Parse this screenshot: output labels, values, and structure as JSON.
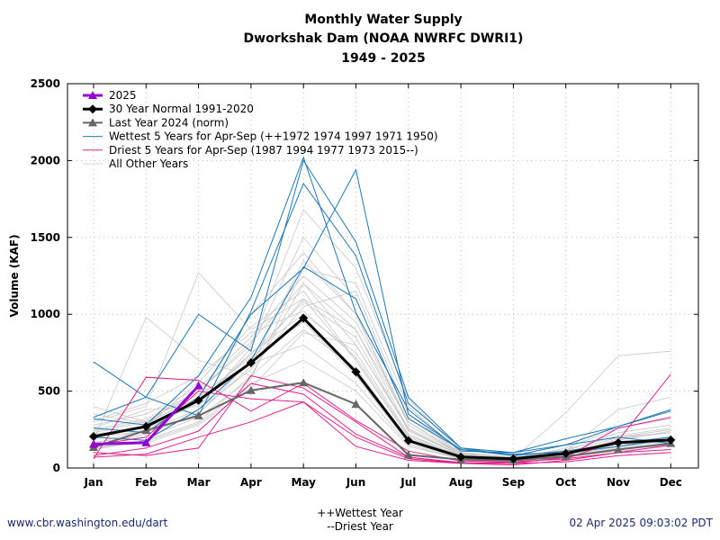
{
  "titles": {
    "line1": "Monthly Water Supply",
    "line2": "Dworkshak Dam (NOAA NWRFC DWRI1)",
    "line3": "1949 - 2025"
  },
  "footer": {
    "left": "www.cbr.washington.edu/dart",
    "right": "02 Apr 2025 09:03:02 PDT",
    "wettest_note": "++Wettest Year",
    "driest_note": "--Driest Year"
  },
  "colors": {
    "y2025": "#9400d3",
    "normal": "#000000",
    "lastyear": "#666666",
    "wettest": "#1f77b4",
    "driest": "#e0218a",
    "other": "#c8c8c8"
  },
  "chart_data": {
    "type": "line",
    "ylabel": "Volume (KAF)",
    "xlabel": "",
    "categories": [
      "Jan",
      "Feb",
      "Mar",
      "Apr",
      "May",
      "Jun",
      "Jul",
      "Aug",
      "Sep",
      "Oct",
      "Nov",
      "Dec"
    ],
    "ylim": [
      0,
      2500
    ],
    "yticks": [
      0,
      500,
      1000,
      1500,
      2000,
      2500
    ],
    "grid": true,
    "legend_position": "top-left",
    "legend": [
      {
        "key": "y2025",
        "label": "2025"
      },
      {
        "key": "normal",
        "label": "30 Year Normal 1991-2020"
      },
      {
        "key": "lastyear",
        "label": "Last Year 2024 (norm)"
      },
      {
        "key": "wettest",
        "label": "Wettest 5 Years for Apr-Sep (++1972 1974 1997 1971 1950)"
      },
      {
        "key": "driest",
        "label": "Driest 5 Years for Apr-Sep (1987 1994 1977 1973 2015--)"
      },
      {
        "key": "other",
        "label": "All Other Years"
      }
    ],
    "series": [
      {
        "key": "y2025",
        "name": "2025",
        "values": [
          155,
          165,
          535,
          null,
          null,
          null,
          null,
          null,
          null,
          null,
          null,
          null
        ]
      },
      {
        "key": "normal",
        "name": "30 Year Normal 1991-2020",
        "values": [
          205,
          270,
          440,
          685,
          975,
          625,
          178,
          72,
          60,
          95,
          165,
          182
        ]
      },
      {
        "key": "lastyear",
        "name": "Last Year 2024 (norm)",
        "values": [
          135,
          245,
          340,
          505,
          555,
          415,
          85,
          55,
          50,
          75,
          120,
          160
        ]
      }
    ],
    "wettest_years": [
      [
        690,
        460,
        1000,
        760,
        2000,
        1470,
        460,
        130,
        100,
        190,
        270,
        380
      ],
      [
        330,
        460,
        340,
        1020,
        1850,
        1380,
        420,
        130,
        80,
        150,
        270,
        370
      ],
      [
        320,
        280,
        600,
        1110,
        2020,
        1010,
        380,
        110,
        100,
        150,
        200,
        160
      ],
      [
        260,
        230,
        460,
        1000,
        1300,
        1940,
        350,
        120,
        80,
        110,
        160,
        200
      ],
      [
        200,
        180,
        380,
        700,
        1310,
        1100,
        320,
        120,
        90,
        100,
        140,
        190
      ]
    ],
    "driest_years": [
      [
        60,
        590,
        570,
        370,
        550,
        310,
        110,
        45,
        40,
        60,
        180,
        610
      ],
      [
        80,
        130,
        240,
        550,
        480,
        220,
        70,
        35,
        30,
        70,
        260,
        330
      ],
      [
        70,
        90,
        200,
        300,
        430,
        140,
        50,
        30,
        20,
        50,
        100,
        120
      ],
      [
        100,
        80,
        130,
        600,
        520,
        300,
        70,
        30,
        30,
        40,
        80,
        100
      ],
      [
        150,
        200,
        500,
        450,
        430,
        200,
        60,
        30,
        40,
        60,
        100,
        150
      ]
    ],
    "other_years": [
      [
        180,
        980,
        700,
        600,
        1200,
        800,
        250,
        80,
        60,
        90,
        140,
        180
      ],
      [
        300,
        400,
        1270,
        900,
        1100,
        700,
        200,
        70,
        60,
        360,
        730,
        760
      ],
      [
        250,
        320,
        500,
        800,
        1680,
        1300,
        450,
        100,
        70,
        100,
        200,
        250
      ],
      [
        400,
        300,
        450,
        1000,
        1400,
        1000,
        300,
        90,
        60,
        110,
        380,
        460
      ],
      [
        150,
        220,
        350,
        700,
        1100,
        900,
        250,
        80,
        60,
        90,
        160,
        190
      ],
      [
        220,
        260,
        420,
        750,
        1000,
        750,
        220,
        75,
        55,
        100,
        170,
        200
      ],
      [
        120,
        180,
        300,
        600,
        900,
        650,
        180,
        70,
        50,
        80,
        140,
        170
      ],
      [
        280,
        350,
        520,
        850,
        1250,
        950,
        300,
        85,
        65,
        120,
        210,
        260
      ],
      [
        200,
        240,
        380,
        640,
        1050,
        1150,
        350,
        95,
        70,
        90,
        150,
        190
      ],
      [
        350,
        290,
        460,
        720,
        950,
        600,
        160,
        65,
        50,
        85,
        190,
        230
      ],
      [
        170,
        200,
        330,
        580,
        1300,
        1200,
        400,
        100,
        70,
        100,
        170,
        200
      ],
      [
        240,
        310,
        480,
        680,
        800,
        550,
        150,
        60,
        45,
        75,
        130,
        160
      ],
      [
        190,
        270,
        560,
        920,
        1150,
        700,
        200,
        75,
        55,
        95,
        180,
        240
      ],
      [
        260,
        380,
        400,
        780,
        1500,
        1100,
        330,
        90,
        65,
        110,
        230,
        280
      ],
      [
        140,
        160,
        280,
        520,
        880,
        800,
        260,
        80,
        55,
        80,
        120,
        150
      ],
      [
        310,
        420,
        600,
        880,
        1020,
        720,
        210,
        80,
        60,
        130,
        260,
        320
      ],
      [
        210,
        230,
        360,
        660,
        1350,
        1000,
        280,
        85,
        62,
        95,
        160,
        200
      ],
      [
        160,
        250,
        430,
        740,
        1080,
        850,
        240,
        80,
        58,
        90,
        150,
        175
      ],
      [
        230,
        300,
        500,
        820,
        1200,
        900,
        300,
        90,
        64,
        100,
        200,
        230
      ],
      [
        130,
        170,
        290,
        550,
        700,
        500,
        140,
        60,
        45,
        70,
        110,
        140
      ]
    ]
  }
}
